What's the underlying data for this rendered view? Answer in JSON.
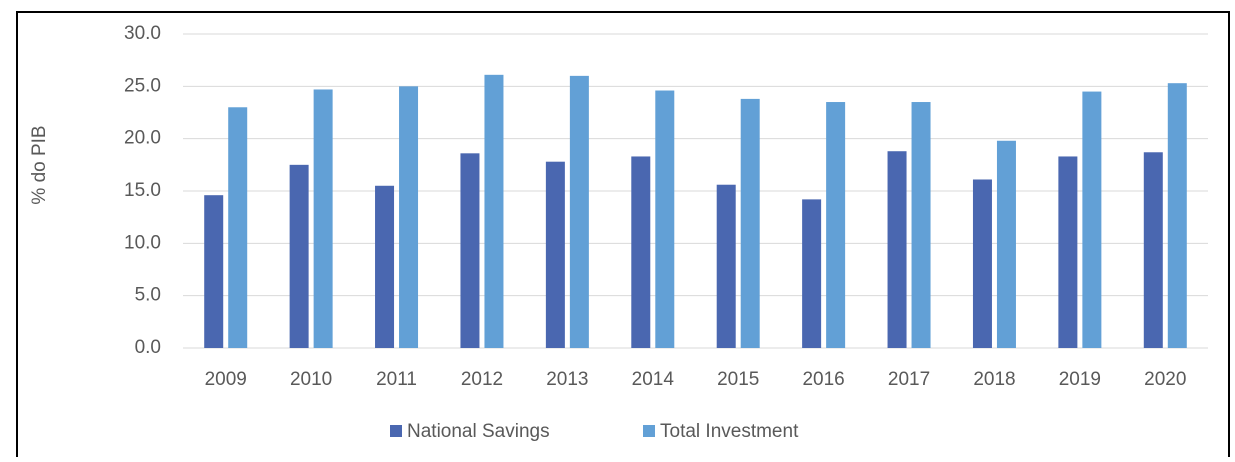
{
  "chart_data": {
    "type": "bar",
    "y_label": "% do PIB",
    "categories": [
      "2009",
      "2010",
      "2011",
      "2012",
      "2013",
      "2014",
      "2015",
      "2016",
      "2017",
      "2018",
      "2019",
      "2020"
    ],
    "series": [
      {
        "name": "National Savings",
        "color": "#4a67b0",
        "values": [
          14.6,
          17.5,
          15.5,
          18.6,
          17.8,
          18.3,
          15.6,
          14.2,
          18.8,
          16.1,
          18.3,
          18.7
        ]
      },
      {
        "name": "Total Investment",
        "color": "#62a0d6",
        "values": [
          23.0,
          24.7,
          25.0,
          26.1,
          26.0,
          24.6,
          23.8,
          23.5,
          23.5,
          19.8,
          24.5,
          25.3
        ]
      }
    ],
    "ylim": [
      0,
      30
    ],
    "yticks": [
      {
        "value": 0,
        "label": "0.0"
      },
      {
        "value": 5,
        "label": "5.0"
      },
      {
        "value": 10,
        "label": "10.0"
      },
      {
        "value": 15,
        "label": "15.0"
      },
      {
        "value": 20,
        "label": "20.0"
      },
      {
        "value": 25,
        "label": "25.0"
      },
      {
        "value": 30,
        "label": "30.0"
      }
    ],
    "grid": true,
    "legend": "bottom"
  }
}
